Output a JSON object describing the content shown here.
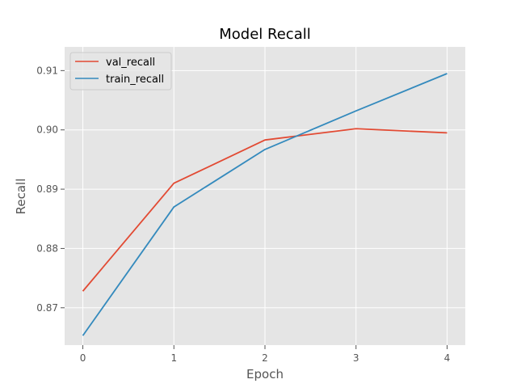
{
  "chart_data": {
    "type": "line",
    "title": "Model Recall",
    "xlabel": "Epoch",
    "ylabel": "Recall",
    "x": [
      0,
      1,
      2,
      3,
      4
    ],
    "xticks": [
      "0",
      "1",
      "2",
      "3",
      "4"
    ],
    "yticks": [
      "0.87",
      "0.88",
      "0.89",
      "0.90",
      "0.91"
    ],
    "xlim": [
      -0.2,
      4.2
    ],
    "ylim": [
      0.8637,
      0.914
    ],
    "grid": true,
    "legend_position": "top-left",
    "series": [
      {
        "name": "val_recall",
        "color": "#E24A33",
        "values": [
          0.8728,
          0.891,
          0.8983,
          0.9002,
          0.8995
        ]
      },
      {
        "name": "train_recall",
        "color": "#348ABD",
        "values": [
          0.8653,
          0.887,
          0.8967,
          0.9032,
          0.9095
        ]
      }
    ],
    "colors": {
      "plot_bg": "#E5E5E5",
      "grid": "#FFFFFF",
      "text": "#555555",
      "title": "#000000"
    }
  }
}
